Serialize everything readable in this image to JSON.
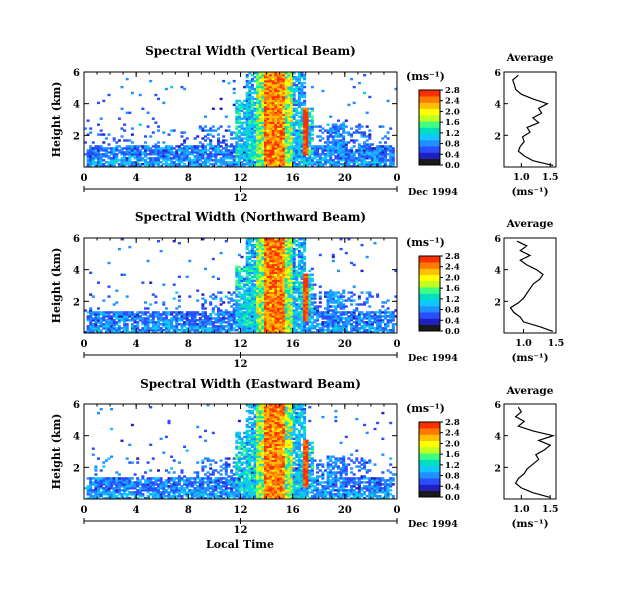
{
  "chart_data": [
    {
      "type": "heatmap",
      "title": "Spectral Width (Vertical Beam)",
      "ylabel": "Height (km)",
      "x_ticks": [
        "0",
        "4",
        "8",
        "12",
        "16",
        "20",
        "0"
      ],
      "y_ticks": [
        "2",
        "4",
        "6"
      ],
      "xlim": [
        0,
        24
      ],
      "ylim": [
        0,
        6
      ],
      "colorbar": {
        "unit": "(ms⁻¹)",
        "ticks": [
          "0.0",
          "0.4",
          "0.8",
          "1.2",
          "1.6",
          "2.0",
          "2.4",
          "2.8"
        ],
        "range": [
          0,
          2.8
        ]
      },
      "date_axis": {
        "tick": "12",
        "label": "Dec 1994"
      },
      "profile": {
        "title": "Average",
        "xlabel": "(ms⁻¹)",
        "x_ticks": [
          "1.0",
          "1.5"
        ],
        "y_ticks": [
          "2",
          "4",
          "6"
        ],
        "xlim": [
          0.7,
          1.6
        ],
        "ylim": [
          0,
          6
        ],
        "height": [
          0.1,
          0.4,
          0.7,
          1.0,
          1.3,
          1.6,
          1.9,
          2.2,
          2.5,
          2.8,
          3.1,
          3.4,
          3.7,
          4.0,
          4.3,
          4.6,
          4.9,
          5.2,
          5.5,
          5.8
        ],
        "width": [
          1.55,
          1.2,
          1.05,
          0.95,
          0.98,
          1.05,
          1.02,
          1.15,
          1.1,
          1.3,
          1.2,
          1.35,
          1.3,
          1.45,
          1.2,
          1.0,
          0.9,
          0.88,
          0.85,
          0.95
        ]
      }
    },
    {
      "type": "heatmap",
      "title": "Spectral Width (Northward Beam)",
      "ylabel": "Height (km)",
      "x_ticks": [
        "0",
        "4",
        "8",
        "12",
        "16",
        "20",
        "0"
      ],
      "y_ticks": [
        "2",
        "4",
        "6"
      ],
      "xlim": [
        0,
        24
      ],
      "ylim": [
        0,
        6
      ],
      "colorbar": {
        "unit": "(ms⁻¹)",
        "ticks": [
          "0.0",
          "0.4",
          "0.8",
          "1.2",
          "1.6",
          "2.0",
          "2.4",
          "2.8"
        ],
        "range": [
          0,
          2.8
        ]
      },
      "date_axis": {
        "tick": "12",
        "label": "Dec 1994"
      },
      "profile": {
        "title": "Average",
        "xlabel": "(ms⁻¹)",
        "x_ticks": [
          "1.0",
          "1.5"
        ],
        "y_ticks": [
          "2",
          "4",
          "6"
        ],
        "xlim": [
          0.7,
          1.5
        ],
        "ylim": [
          0,
          6
        ],
        "height": [
          0.1,
          0.4,
          0.7,
          1.0,
          1.3,
          1.6,
          1.9,
          2.2,
          2.5,
          2.8,
          3.1,
          3.4,
          3.7,
          4.0,
          4.3,
          4.6,
          4.9,
          5.2,
          5.5,
          5.8
        ],
        "width": [
          1.45,
          1.25,
          1.0,
          0.95,
          0.85,
          0.8,
          0.92,
          1.0,
          1.05,
          1.1,
          1.15,
          1.25,
          1.3,
          1.2,
          1.05,
          0.95,
          1.1,
          0.95,
          1.05,
          0.9
        ]
      }
    },
    {
      "type": "heatmap",
      "title": "Spectral Width (Eastward Beam)",
      "ylabel": "Height (km)",
      "x_ticks": [
        "0",
        "4",
        "8",
        "12",
        "16",
        "20",
        "0"
      ],
      "y_ticks": [
        "2",
        "4",
        "6"
      ],
      "xlim": [
        0,
        24
      ],
      "ylim": [
        0,
        6
      ],
      "colorbar": {
        "unit": "(ms⁻¹)",
        "ticks": [
          "0.0",
          "0.4",
          "0.8",
          "1.2",
          "1.6",
          "2.0",
          "2.4",
          "2.8"
        ],
        "range": [
          0,
          2.8
        ]
      },
      "date_axis": {
        "tick": "12",
        "label": "Dec 1994"
      },
      "xlabel": "Local Time",
      "profile": {
        "title": "Average",
        "xlabel": "(ms⁻¹)",
        "x_ticks": [
          "1.0",
          "1.5"
        ],
        "y_ticks": [
          "2",
          "4",
          "6"
        ],
        "xlim": [
          0.7,
          1.6
        ],
        "ylim": [
          0,
          6
        ],
        "height": [
          0.1,
          0.4,
          0.7,
          1.0,
          1.3,
          1.6,
          1.9,
          2.2,
          2.5,
          2.8,
          3.1,
          3.4,
          3.7,
          4.0,
          4.3,
          4.6,
          4.9,
          5.2,
          5.5,
          5.8
        ],
        "width": [
          1.5,
          1.2,
          1.0,
          0.9,
          0.95,
          1.05,
          1.1,
          1.2,
          1.3,
          1.25,
          1.4,
          1.5,
          1.3,
          1.55,
          1.2,
          0.95,
          1.05,
          0.9,
          1.0,
          0.95
        ]
      }
    }
  ],
  "colorscale": [
    "#ffffff",
    "#1a1a1a",
    "#2020c0",
    "#2b4cff",
    "#1e90ff",
    "#10c8ff",
    "#00e0c0",
    "#40ff80",
    "#c0ff20",
    "#ffff00",
    "#ffc000",
    "#ff7a00",
    "#ff3000",
    "#e00000"
  ]
}
